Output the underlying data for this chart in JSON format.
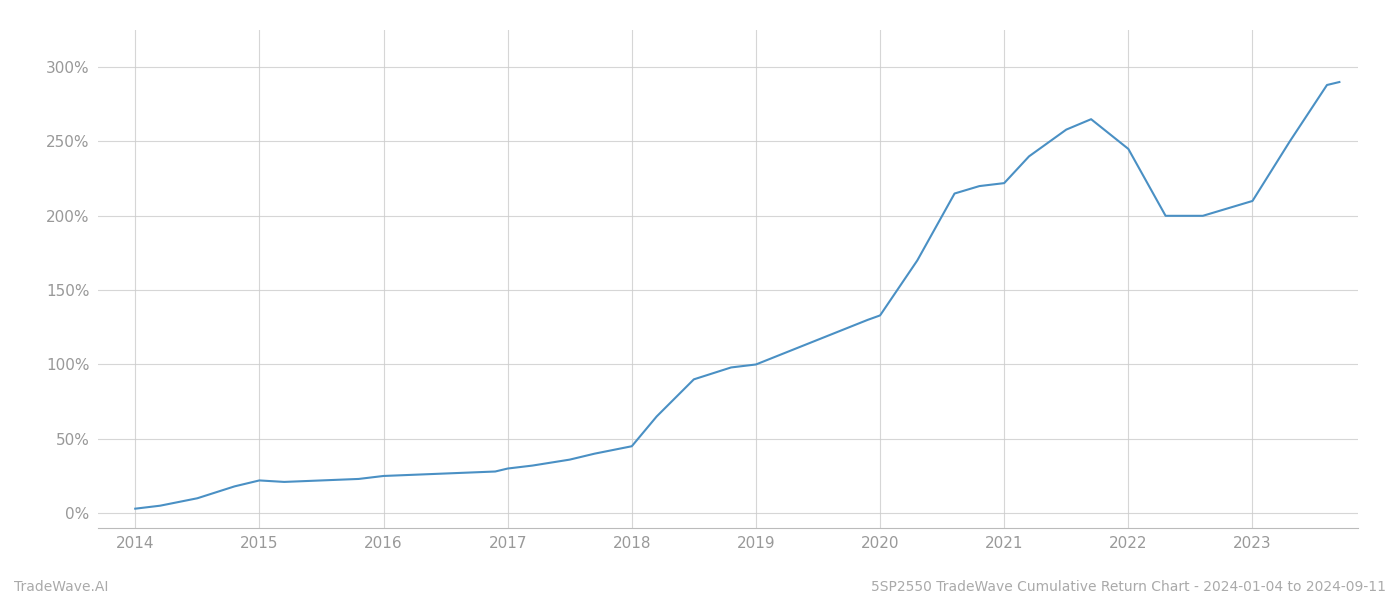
{
  "x_years": [
    2014.0,
    2014.2,
    2014.5,
    2014.8,
    2015.0,
    2015.2,
    2015.5,
    2015.8,
    2016.0,
    2016.3,
    2016.6,
    2016.9,
    2017.0,
    2017.2,
    2017.5,
    2017.7,
    2018.0,
    2018.2,
    2018.5,
    2018.8,
    2019.0,
    2019.3,
    2019.6,
    2019.9,
    2020.0,
    2020.3,
    2020.6,
    2020.8,
    2021.0,
    2021.2,
    2021.5,
    2021.7,
    2022.0,
    2022.3,
    2022.6,
    2023.0,
    2023.3,
    2023.6,
    2023.7
  ],
  "y_values": [
    3,
    5,
    10,
    18,
    22,
    21,
    22,
    23,
    25,
    26,
    27,
    28,
    30,
    32,
    36,
    40,
    45,
    65,
    90,
    98,
    100,
    110,
    120,
    130,
    133,
    170,
    215,
    220,
    222,
    240,
    258,
    265,
    245,
    200,
    200,
    210,
    250,
    288,
    290
  ],
  "line_color": "#4a90c4",
  "line_width": 1.5,
  "xlim": [
    2013.7,
    2023.85
  ],
  "ylim": [
    -10,
    325
  ],
  "yticks": [
    0,
    50,
    100,
    150,
    200,
    250,
    300
  ],
  "xticks": [
    2014,
    2015,
    2016,
    2017,
    2018,
    2019,
    2020,
    2021,
    2022,
    2023
  ],
  "grid_color": "#cccccc",
  "grid_alpha": 0.8,
  "bg_color": "#ffffff",
  "footer_left": "TradeWave.AI",
  "footer_right": "5SP2550 TradeWave Cumulative Return Chart - 2024-01-04 to 2024-09-11",
  "footer_color": "#aaaaaa",
  "footer_fontsize": 10,
  "tick_label_color": "#999999",
  "tick_fontsize": 11
}
